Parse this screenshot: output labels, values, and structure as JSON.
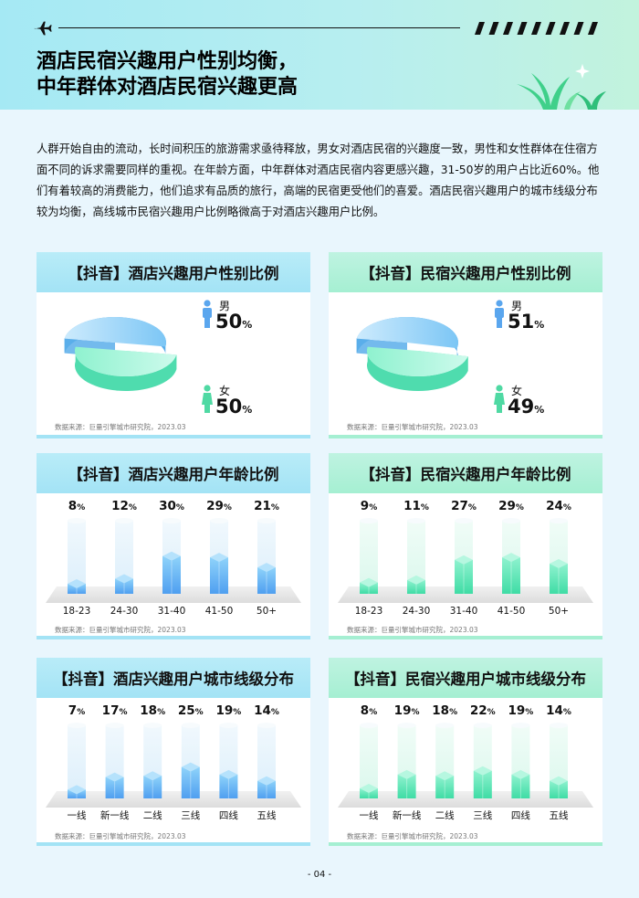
{
  "header": {
    "title_lines": [
      "酒店民宿兴趣用户性别均衡，",
      "中年群体对酒店民宿兴趣更高"
    ],
    "icons": [
      "airplane-icon",
      "stripes-decoration",
      "sparkle-icon",
      "plant-decoration"
    ]
  },
  "intro": "人群开始自由的流动，长时间积压的旅游需求亟待释放，男女对酒店民宿的兴趣度一致，男性和女性群体在住宿方面不同的诉求需要同样的重视。在年龄方面，中年群体对酒店民宿内容更感兴趣，31-50岁的用户占比近60%。他们有着较高的消费能力，他们追求有品质的旅行，高端的民宿更受他们的喜爱。酒店民宿兴趣用户的城市线级分布较为均衡，高线城市民宿兴趣用户比例略微高于对酒店兴趣用户比例。",
  "colors": {
    "blue": "#7cc6f5",
    "blue_dark": "#4f9ff0",
    "green": "#74ecc4",
    "green_dark": "#3fdca5",
    "male_icon": "#5aa6ee",
    "female_icon": "#4fd9a3"
  },
  "labels": {
    "male": "男",
    "female": "女",
    "unit": "%"
  },
  "source_text": "数据来源：巨量引擎城市研究院，2023.03",
  "page_number": "- 04 -",
  "chart_data": [
    {
      "id": "hotel-gender",
      "type": "pie",
      "title": "【抖音】酒店兴趣用户性别比例",
      "theme": "blue",
      "categories": [
        "男",
        "女"
      ],
      "values": [
        50,
        50
      ]
    },
    {
      "id": "minsu-gender",
      "type": "pie",
      "title": "【抖音】民宿兴趣用户性别比例",
      "theme": "green",
      "categories": [
        "男",
        "女"
      ],
      "values": [
        51,
        49
      ]
    },
    {
      "id": "hotel-age",
      "type": "bar",
      "title": "【抖音】酒店兴趣用户年龄比例",
      "theme": "blue",
      "categories": [
        "18-23",
        "24-30",
        "31-40",
        "41-50",
        "50+"
      ],
      "values": [
        8,
        12,
        30,
        29,
        21
      ]
    },
    {
      "id": "minsu-age",
      "type": "bar",
      "title": "【抖音】民宿兴趣用户年龄比例",
      "theme": "green",
      "categories": [
        "18-23",
        "24-30",
        "31-40",
        "41-50",
        "50+"
      ],
      "values": [
        9,
        11,
        27,
        29,
        24
      ]
    },
    {
      "id": "hotel-city",
      "type": "bar",
      "title": "【抖音】酒店兴趣用户城市线级分布",
      "theme": "blue",
      "categories": [
        "一线",
        "新一线",
        "二线",
        "三线",
        "四线",
        "五线"
      ],
      "values": [
        7,
        17,
        18,
        25,
        19,
        14
      ]
    },
    {
      "id": "minsu-city",
      "type": "bar",
      "title": "【抖音】民宿兴趣用户城市线级分布",
      "theme": "green",
      "categories": [
        "一线",
        "新一线",
        "二线",
        "三线",
        "四线",
        "五线"
      ],
      "values": [
        8,
        19,
        18,
        22,
        19,
        14
      ]
    }
  ]
}
